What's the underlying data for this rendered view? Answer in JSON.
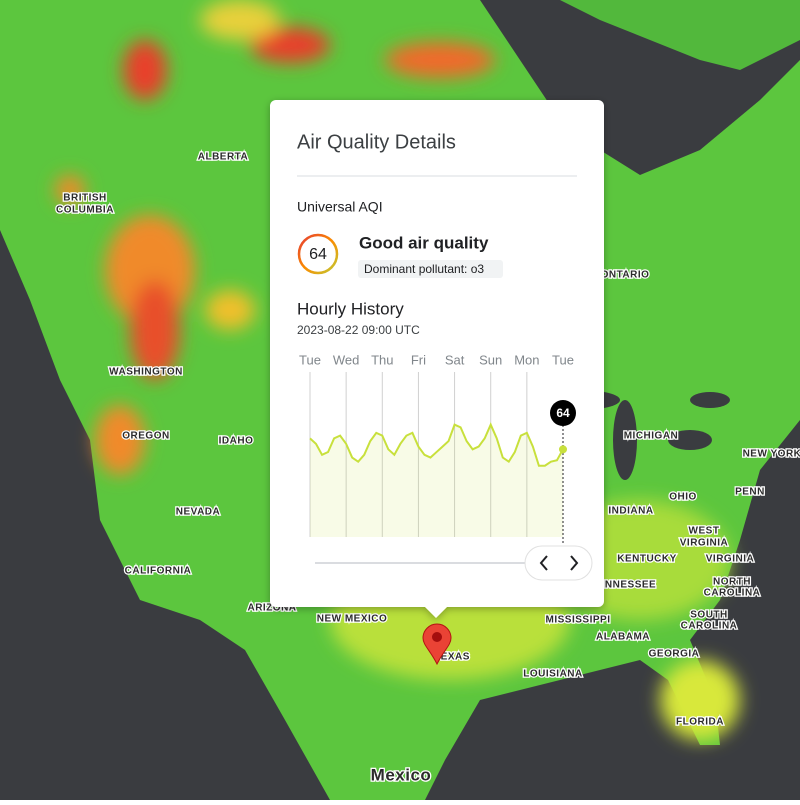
{
  "map": {
    "labels": [
      "ALBERTA",
      "BRITISH",
      "COLUMBIA",
      "WASHINGTON",
      "OREGON",
      "IDAHO",
      "NEVADA",
      "CALIFORNIA",
      "ARIZONA",
      "NEW MEXICO",
      "TEXAS",
      "ONTARIO",
      "MICHIGAN",
      "NEW YORK",
      "OHIO",
      "PENN",
      "INDIANA",
      "WEST",
      "VIRGINIA",
      "KENTUCKY",
      "VIRGINIA",
      "NORTH",
      "CAROLINA",
      "ENNESSEE",
      "MISSISSIPPI",
      "ALABAMA",
      "SOUTH",
      "CAROLINA",
      "GEORGIA",
      "LOUISIANA",
      "FLORIDA",
      "Mexico"
    ]
  },
  "popup": {
    "title": "Air Quality Details",
    "index_name": "Universal AQI",
    "aqi": 64,
    "category": "Good air quality",
    "dominant_pollutant": "Dominant pollutant: o3",
    "history_title": "Hourly History",
    "timestamp": "2023-08-22 09:00 UTC"
  },
  "chart_data": {
    "type": "line",
    "day_labels": [
      "Tue",
      "Wed",
      "Thu",
      "Fri",
      "Sat",
      "Sun",
      "Mon",
      "Tue"
    ],
    "values": [
      72,
      68,
      60,
      62,
      72,
      74,
      68,
      58,
      55,
      60,
      70,
      76,
      74,
      64,
      60,
      68,
      74,
      76,
      66,
      60,
      58,
      62,
      66,
      70,
      82,
      80,
      70,
      64,
      66,
      72,
      82,
      72,
      58,
      55,
      62,
      74,
      76,
      66,
      52,
      52,
      55,
      56,
      64
    ],
    "color": "#c8e03c",
    "ylim": [
      0,
      100
    ]
  }
}
